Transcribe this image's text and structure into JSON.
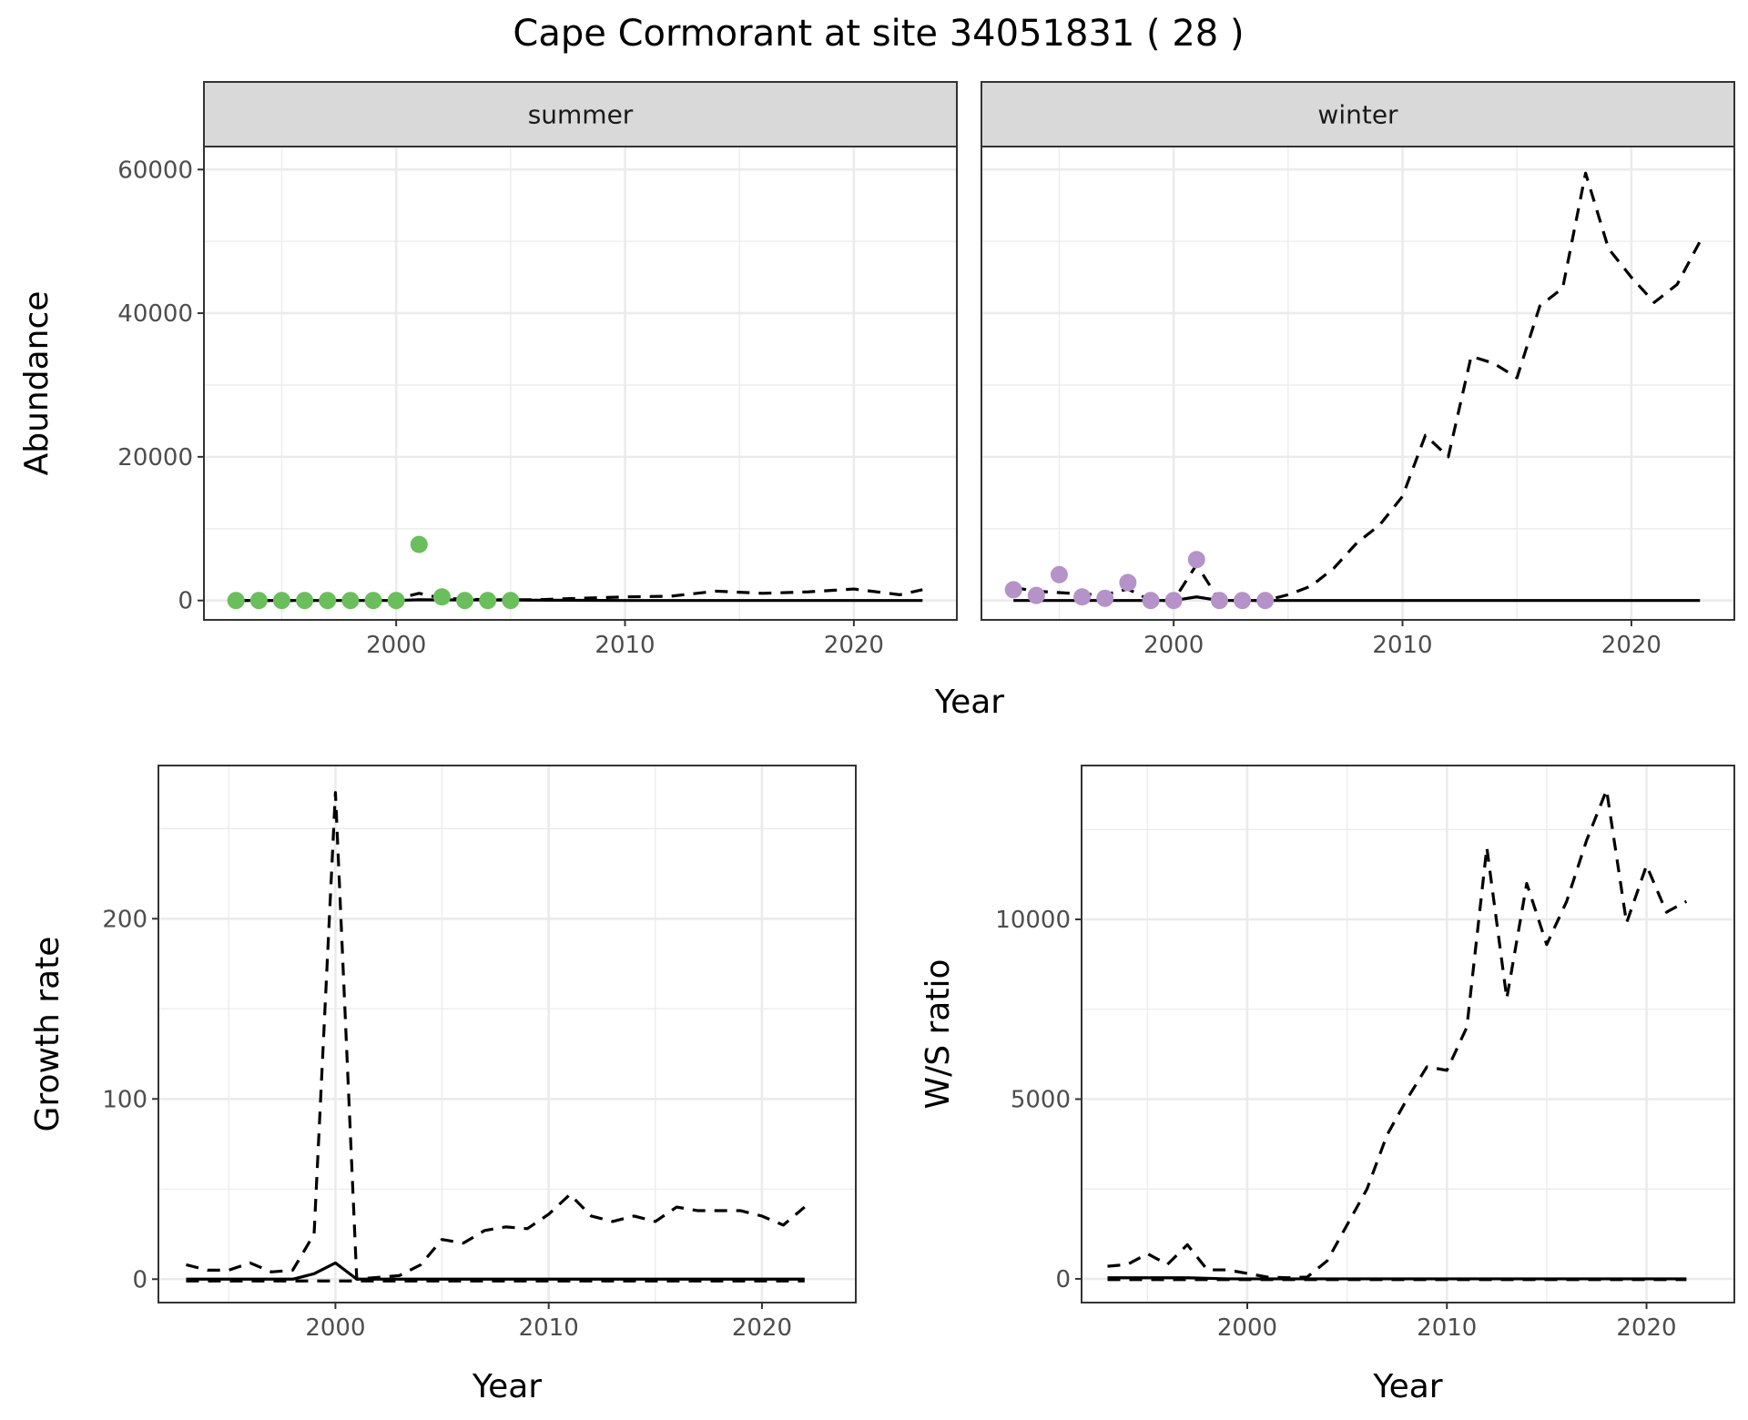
{
  "title": "Cape Cormorant at site 34051831 ( 28 )",
  "colors": {
    "summer_points": "#6BBE5C",
    "winter_points": "#B592C7",
    "lines": "#000000",
    "strip_bg": "#D9D9D9",
    "grid": "#EBEBEB"
  },
  "chart_data": [
    {
      "type": "line",
      "facet": "summer",
      "xlabel": "Year",
      "ylabel": "Abundance",
      "xlim": [
        1991.6,
        2024.5
      ],
      "ylim": [
        -2700,
        63200
      ],
      "xticks": [
        2000,
        2010,
        2020
      ],
      "yticks": [
        0,
        20000,
        40000,
        60000
      ],
      "grid": true,
      "points": {
        "x": [
          1993,
          1994,
          1995,
          1996,
          1997,
          1998,
          1999,
          2000,
          2001,
          2002,
          2003,
          2004,
          2005
        ],
        "y": [
          0,
          0,
          0,
          0,
          0,
          0,
          0,
          0,
          7800,
          500,
          0,
          0,
          0
        ]
      },
      "dashed": {
        "x": [
          1993,
          1995,
          1997,
          1999,
          2000,
          2001,
          2002,
          2004,
          2006,
          2008,
          2010,
          2012,
          2014,
          2016,
          2018,
          2020,
          2022,
          2023
        ],
        "y": [
          0,
          0,
          0,
          0,
          200,
          1000,
          300,
          100,
          100,
          300,
          500,
          600,
          1300,
          1000,
          1200,
          1600,
          800,
          1500
        ]
      },
      "solid": {
        "x": [
          1993,
          2000,
          2001,
          2010,
          2023
        ],
        "y": [
          0,
          0,
          100,
          0,
          0
        ]
      }
    },
    {
      "type": "line",
      "facet": "winter",
      "xlabel": "Year",
      "ylabel": "Abundance",
      "xlim": [
        1991.6,
        2024.5
      ],
      "ylim": [
        -2700,
        63200
      ],
      "xticks": [
        2000,
        2010,
        2020
      ],
      "yticks": [
        0,
        20000,
        40000,
        60000
      ],
      "grid": true,
      "points": {
        "x": [
          1993,
          1994,
          1995,
          1996,
          1997,
          1998,
          1999,
          2000,
          2001,
          2002,
          2003,
          2004
        ],
        "y": [
          1500,
          700,
          3600,
          500,
          300,
          2500,
          0,
          0,
          5700,
          0,
          0,
          0
        ]
      },
      "dashed": {
        "x": [
          1993,
          1994,
          1995,
          1996,
          1997,
          1998,
          1999,
          2000,
          2001,
          2002,
          2003,
          2004,
          2005,
          2006,
          2007,
          2008,
          2009,
          2010,
          2011,
          2012,
          2013,
          2014,
          2015,
          2016,
          2017,
          2018,
          2019,
          2020,
          2021,
          2022,
          2023
        ],
        "y": [
          1800,
          1300,
          1100,
          900,
          800,
          1600,
          0,
          0,
          5000,
          0,
          0,
          0,
          800,
          2000,
          4500,
          8000,
          10500,
          14500,
          23000,
          20000,
          34000,
          33000,
          31000,
          41000,
          43500,
          59500,
          49000,
          45000,
          41500,
          44000,
          50000
        ]
      },
      "solid": {
        "x": [
          1993,
          2000,
          2001,
          2002,
          2010,
          2023
        ],
        "y": [
          0,
          0,
          500,
          0,
          0,
          0
        ]
      }
    },
    {
      "type": "line",
      "xlabel": "Year",
      "ylabel": "Growth rate",
      "xlim": [
        1991.7,
        2024.4
      ],
      "ylim": [
        -13,
        285
      ],
      "xticks": [
        2000,
        2010,
        2020
      ],
      "yticks": [
        0,
        100,
        200
      ],
      "grid": true,
      "dashed": {
        "x": [
          1993,
          1994,
          1995,
          1996,
          1997,
          1998,
          1999,
          2000,
          2001,
          2002,
          2003,
          2004,
          2005,
          2006,
          2007,
          2008,
          2009,
          2010,
          2011,
          2012,
          2013,
          2014,
          2015,
          2016,
          2017,
          2018,
          2019,
          2020,
          2021,
          2022
        ],
        "y": [
          8,
          5,
          5,
          9,
          4,
          5,
          25,
          270,
          0,
          1,
          2,
          8,
          22,
          20,
          27,
          29,
          28,
          36,
          47,
          35,
          32,
          35,
          32,
          40,
          38,
          38,
          38,
          35,
          30,
          40
        ]
      },
      "dashed_low": {
        "x": [
          1993,
          2022
        ],
        "y": [
          -1,
          -1
        ]
      },
      "solid": {
        "x": [
          1993,
          1997,
          1998,
          1999,
          2000,
          2001,
          2002,
          2010,
          2022
        ],
        "y": [
          0,
          0,
          0,
          3,
          9,
          0,
          0,
          0,
          0
        ]
      }
    },
    {
      "type": "line",
      "xlabel": "Year",
      "ylabel": "W/S ratio",
      "xlim": [
        1991.7,
        2024.4
      ],
      "ylim": [
        -660,
        14280
      ],
      "xticks": [
        2000,
        2010,
        2020
      ],
      "yticks": [
        0,
        5000,
        10000
      ],
      "grid": true,
      "dashed": {
        "x": [
          1993,
          1994,
          1995,
          1996,
          1997,
          1998,
          1999,
          2000,
          2001,
          2002,
          2003,
          2004,
          2005,
          2006,
          2007,
          2008,
          2009,
          2010,
          2011,
          2012,
          2013,
          2014,
          2015,
          2016,
          2017,
          2018,
          2019,
          2020,
          2021,
          2022
        ],
        "y": [
          350,
          400,
          700,
          400,
          950,
          250,
          250,
          150,
          50,
          30,
          50,
          500,
          1500,
          2500,
          4000,
          5000,
          5900,
          5800,
          7000,
          12000,
          7800,
          11000,
          9300,
          10500,
          12200,
          13600,
          9900,
          11500,
          10200,
          10500
        ]
      },
      "dashed_low": {
        "x": [
          1993,
          2022
        ],
        "y": [
          -20,
          -20
        ]
      },
      "solid": {
        "x": [
          1993,
          1997,
          1999,
          2022
        ],
        "y": [
          30,
          30,
          0,
          0
        ]
      }
    }
  ]
}
